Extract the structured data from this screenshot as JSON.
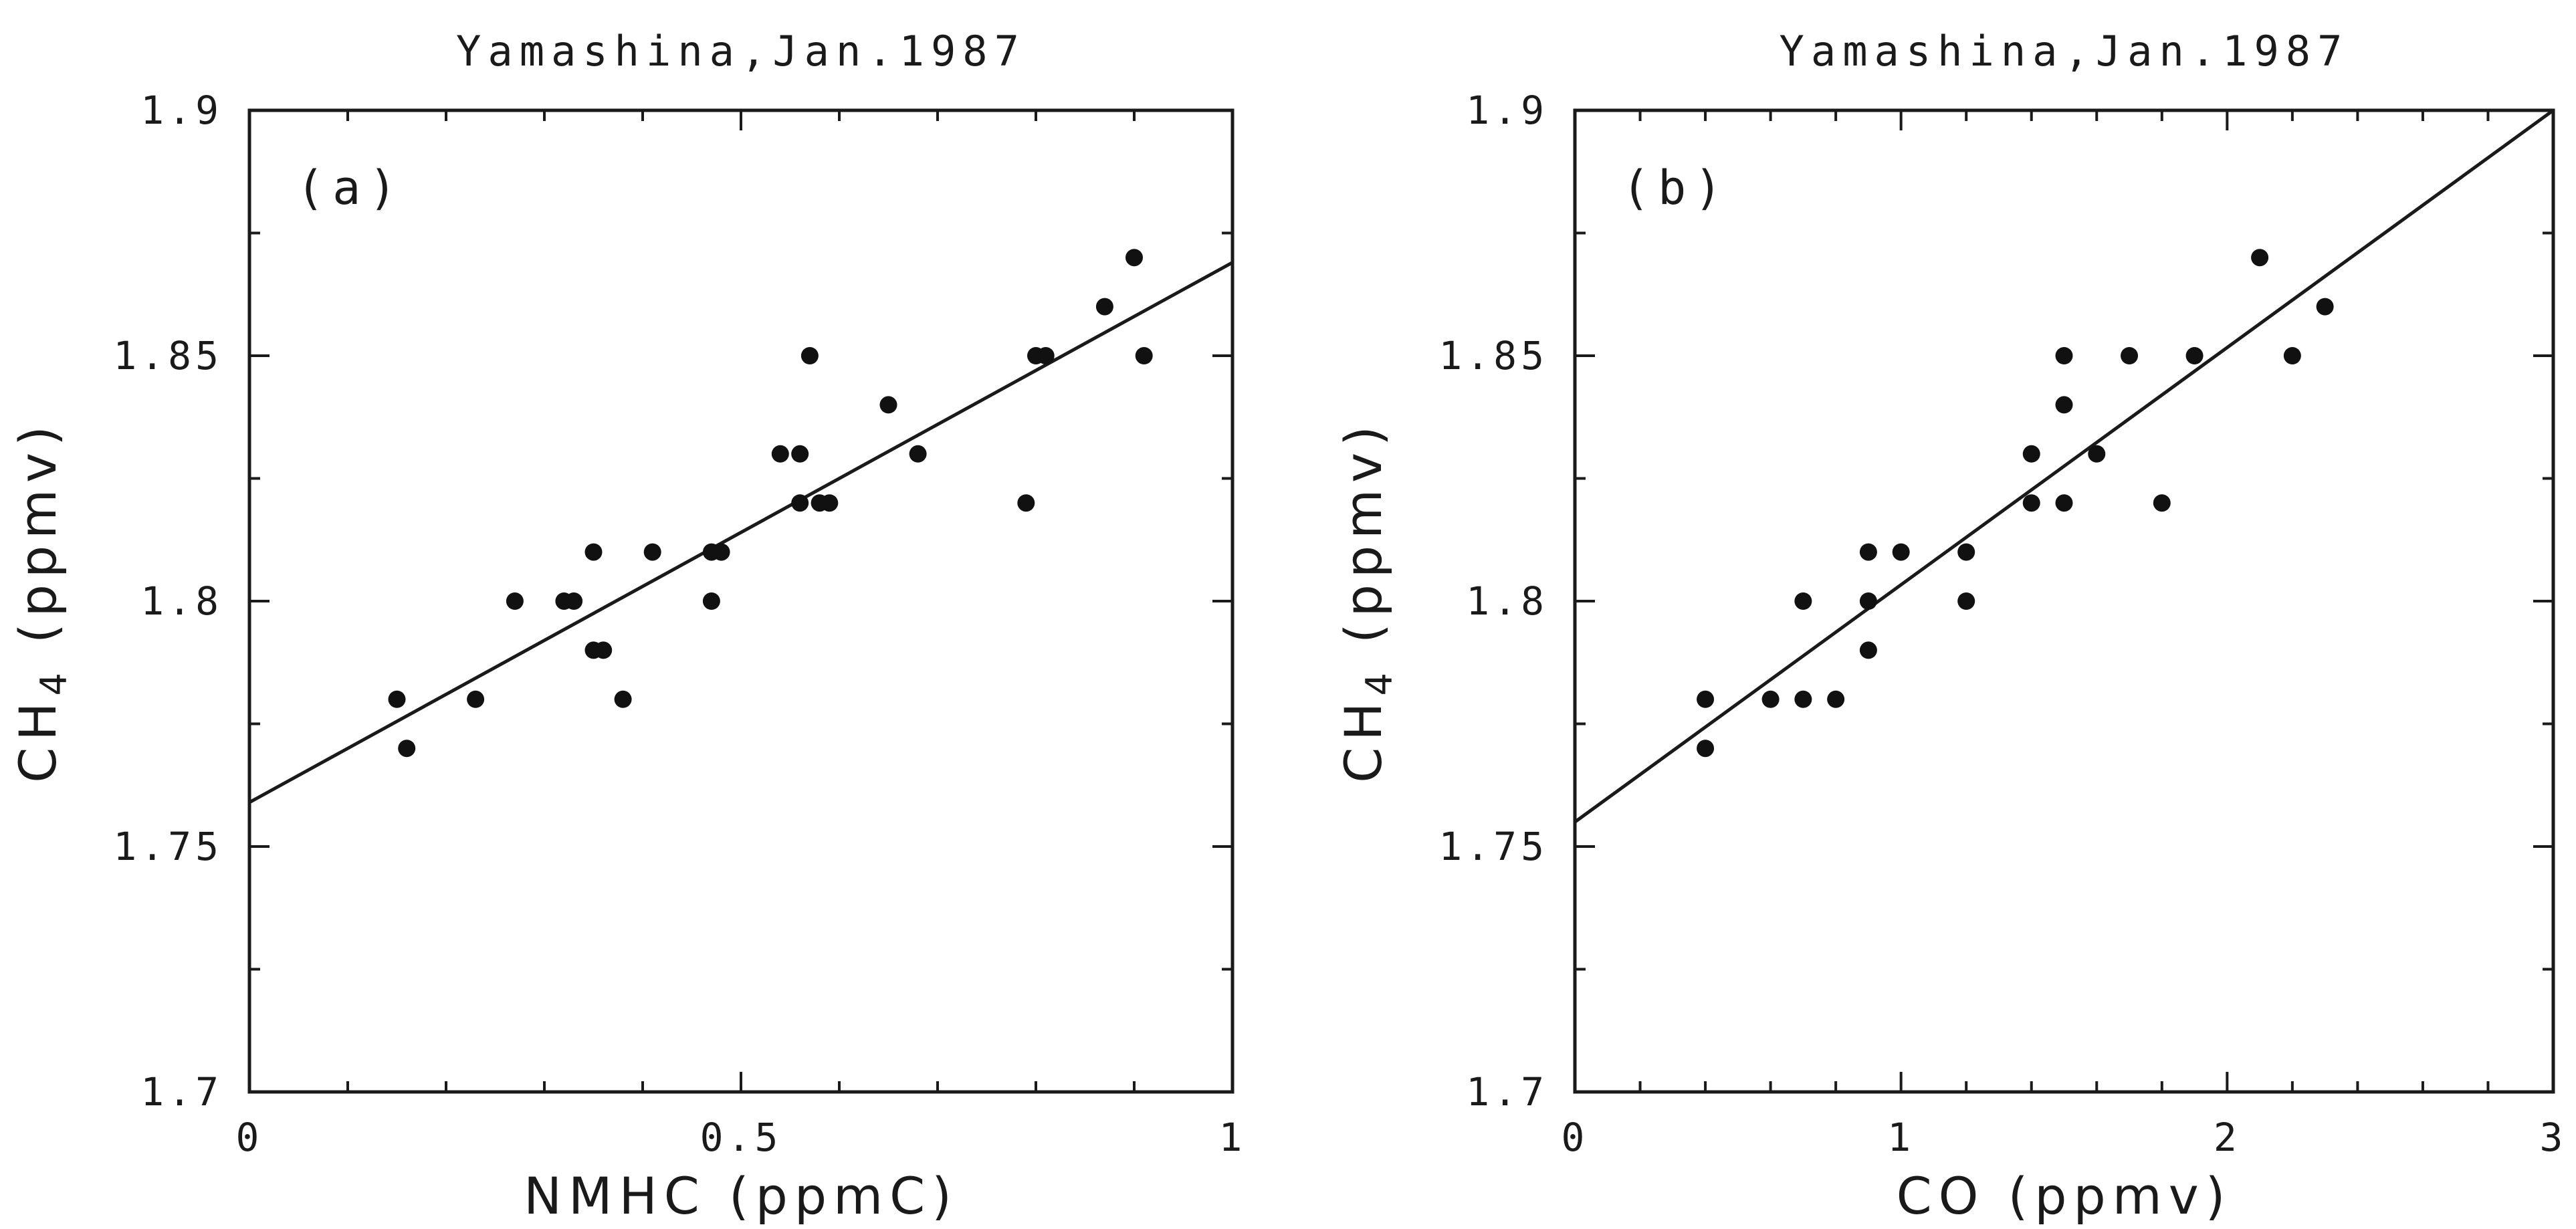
{
  "chart_data": [
    {
      "type": "scatter",
      "title": "Yamashina,Jan.1987",
      "panel_label": "(a)",
      "xlabel": "NMHC (ppmC)",
      "ylabel": "CH4 (ppmv)",
      "xlim": [
        0,
        1
      ],
      "ylim": [
        1.7,
        1.9
      ],
      "x_ticks": [
        "0",
        "0.5",
        "1"
      ],
      "y_ticks": [
        "1.7",
        "1.75",
        "1.8",
        "1.85",
        "1.9"
      ],
      "grid": false,
      "points": [
        [
          0.15,
          1.78
        ],
        [
          0.16,
          1.77
        ],
        [
          0.23,
          1.78
        ],
        [
          0.27,
          1.8
        ],
        [
          0.32,
          1.8
        ],
        [
          0.33,
          1.8
        ],
        [
          0.35,
          1.81
        ],
        [
          0.35,
          1.79
        ],
        [
          0.36,
          1.79
        ],
        [
          0.38,
          1.78
        ],
        [
          0.41,
          1.81
        ],
        [
          0.47,
          1.81
        ],
        [
          0.47,
          1.8
        ],
        [
          0.48,
          1.81
        ],
        [
          0.54,
          1.83
        ],
        [
          0.56,
          1.83
        ],
        [
          0.56,
          1.82
        ],
        [
          0.57,
          1.85
        ],
        [
          0.58,
          1.82
        ],
        [
          0.59,
          1.82
        ],
        [
          0.65,
          1.84
        ],
        [
          0.68,
          1.83
        ],
        [
          0.79,
          1.82
        ],
        [
          0.8,
          1.85
        ],
        [
          0.81,
          1.85
        ],
        [
          0.87,
          1.86
        ],
        [
          0.9,
          1.87
        ],
        [
          0.91,
          1.85
        ]
      ],
      "fit_line": [
        [
          0,
          1.759
        ],
        [
          1,
          1.869
        ]
      ]
    },
    {
      "type": "scatter",
      "title": "Yamashina,Jan.1987",
      "panel_label": "(b)",
      "xlabel": "CO (ppmv)",
      "ylabel": "CH4 (ppmv)",
      "xlim": [
        0,
        3
      ],
      "ylim": [
        1.7,
        1.9
      ],
      "x_ticks": [
        "0",
        "1",
        "2",
        "3"
      ],
      "y_ticks": [
        "1.7",
        "1.75",
        "1.8",
        "1.85",
        "1.9"
      ],
      "grid": false,
      "points": [
        [
          0.4,
          1.78
        ],
        [
          0.4,
          1.77
        ],
        [
          0.6,
          1.78
        ],
        [
          0.7,
          1.8
        ],
        [
          0.7,
          1.78
        ],
        [
          0.8,
          1.78
        ],
        [
          0.9,
          1.81
        ],
        [
          0.9,
          1.8
        ],
        [
          0.9,
          1.79
        ],
        [
          1.0,
          1.81
        ],
        [
          1.2,
          1.81
        ],
        [
          1.2,
          1.8
        ],
        [
          1.4,
          1.83
        ],
        [
          1.4,
          1.82
        ],
        [
          1.5,
          1.85
        ],
        [
          1.5,
          1.84
        ],
        [
          1.5,
          1.82
        ],
        [
          1.6,
          1.83
        ],
        [
          1.7,
          1.85
        ],
        [
          1.8,
          1.82
        ],
        [
          1.9,
          1.85
        ],
        [
          2.1,
          1.87
        ],
        [
          2.2,
          1.85
        ],
        [
          2.3,
          1.86
        ]
      ],
      "fit_line": [
        [
          0,
          1.755
        ],
        [
          3,
          1.9
        ]
      ]
    }
  ]
}
